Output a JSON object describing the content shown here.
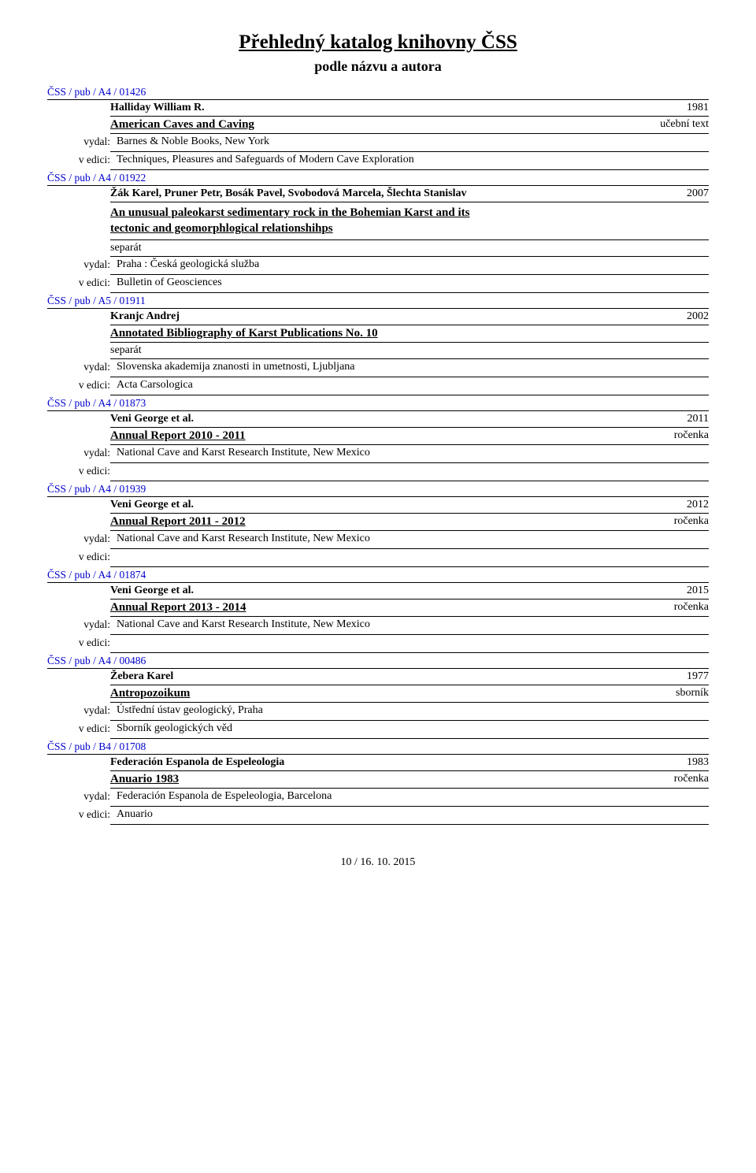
{
  "header": {
    "title": "Přehledný katalog knihovny ČSS",
    "subtitle": "podle názvu a autora"
  },
  "labels": {
    "vydal": "vydal:",
    "vedici": "v edici:"
  },
  "entries": [
    {
      "catalog_id": "ČSS / pub / A4 / 01426",
      "author": "Halliday William R.",
      "year": "1981",
      "title": "American Caves and Caving",
      "type": "učební text",
      "vydal": "Barnes &  Noble Books, New York",
      "vedici": "Techniques, Pleasures and Safeguards of Modern Cave Exploration"
    },
    {
      "catalog_id": "ČSS / pub / A4 / 01922",
      "author": "Žák Karel, Pruner Petr, Bosák Pavel, Svobodová Marcela, Šlechta Stanislav",
      "year": "2007",
      "subtitle_lines": [
        "An unusual paleokarst sedimentary rock in the Bohemian Karst and its",
        "tectonic and geomorphlogical relationshihps"
      ],
      "note": "separát",
      "vydal": "Praha : Česká geologická služba",
      "vedici": "Bulletin of Geosciences"
    },
    {
      "catalog_id": "ČSS / pub / A5 / 01911",
      "author": "Kranjc Andrej",
      "year": "2002",
      "title": "Annotated Bibliography of Karst Publications No. 10",
      "note": "separát",
      "vydal": "Slovenska akademija znanosti in umetnosti, Ljubljana",
      "vedici": "Acta Carsologica"
    },
    {
      "catalog_id": "ČSS / pub / A4 / 01873",
      "author": "Veni George et al.",
      "year": "2011",
      "title": "Annual Report 2010 - 2011",
      "type": "ročenka",
      "vydal": "National Cave and Karst Research Institute, New Mexico",
      "vedici": ""
    },
    {
      "catalog_id": "ČSS / pub / A4 / 01939",
      "author": "Veni George et al.",
      "year": "2012",
      "title": "Annual Report 2011 - 2012",
      "type": "ročenka",
      "vydal": "National Cave and Karst Research Institute, New Mexico",
      "vedici": ""
    },
    {
      "catalog_id": "ČSS / pub / A4 / 01874",
      "author": "Veni George et al.",
      "year": "2015",
      "title": "Annual Report 2013 - 2014",
      "type": "ročenka",
      "vydal": "National Cave and Karst Research Institute, New Mexico",
      "vedici": ""
    },
    {
      "catalog_id": "ČSS / pub / A4 / 00486",
      "author": "Žebera Karel",
      "year": "1977",
      "title": "Antropozoikum",
      "type": "sborník",
      "vydal": "Ústřední ústav geologický, Praha",
      "vedici": "Sborník geologických věd"
    },
    {
      "catalog_id": "ČSS / pub / B4 / 01708",
      "author": "Federación Espanola de Espeleologia",
      "year": "1983",
      "title": "Anuario 1983",
      "type": "ročenka",
      "vydal": "Federación Espanola de Espeleologia, Barcelona",
      "vedici": "Anuario"
    }
  ],
  "footer": "10 / 16. 10. 2015"
}
